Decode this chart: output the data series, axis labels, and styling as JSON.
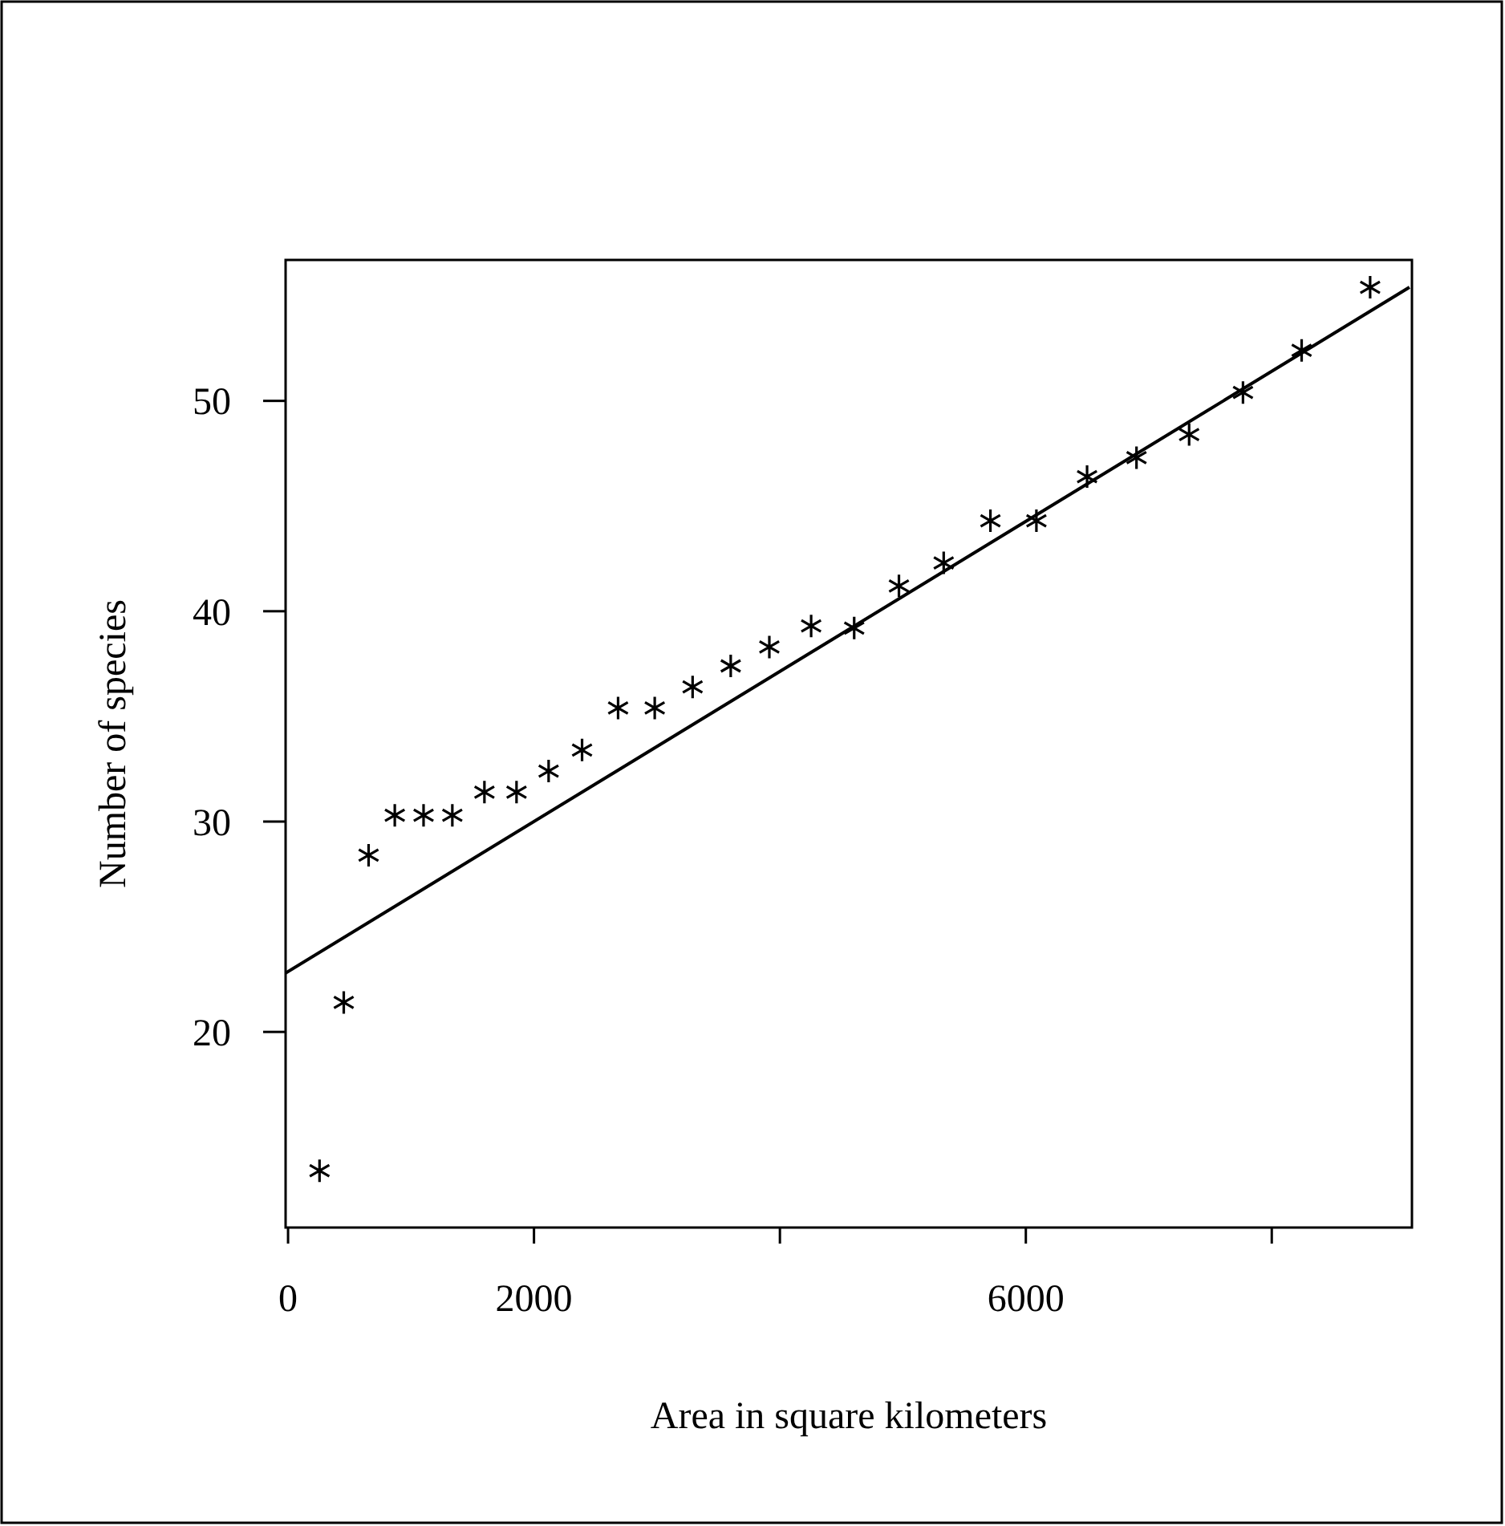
{
  "chart_data": {
    "type": "scatter",
    "xlabel": "Area in square kilometers",
    "ylabel": "Number of species",
    "xlim": [
      -20,
      9140
    ],
    "ylim": [
      10.7,
      56.7
    ],
    "xticks": [
      0,
      2000,
      {
        "value": 4000,
        "label": null
      },
      6000,
      {
        "value": 8000,
        "label": null
      }
    ],
    "yticks": [
      20,
      30,
      40,
      50
    ],
    "grid": false,
    "series": [
      {
        "color": "#000000",
        "marker": "cross",
        "x": [
          256,
          453,
          655,
          868,
          1102,
          1336,
          1597,
          1858,
          2119,
          2391,
          2684,
          2982,
          3290,
          3600,
          3914,
          4254,
          4604,
          4968,
          5332,
          5712,
          6086,
          6498,
          6900,
          7328,
          7766,
          8243,
          8800
        ],
        "values": [
          13.4,
          21.4,
          28.4,
          30.3,
          30.3,
          30.3,
          31.4,
          31.4,
          32.4,
          33.4,
          35.4,
          35.4,
          36.4,
          37.4,
          38.3,
          39.3,
          39.2,
          41.2,
          42.3,
          44.3,
          44.3,
          46.4,
          47.3,
          48.4,
          50.4,
          52.4,
          55.4
        ]
      },
      {
        "type": "line",
        "color": "#000000",
        "line_style": "solid",
        "x": [
          -20,
          9120
        ],
        "values": [
          22.8,
          55.4
        ]
      }
    ]
  }
}
